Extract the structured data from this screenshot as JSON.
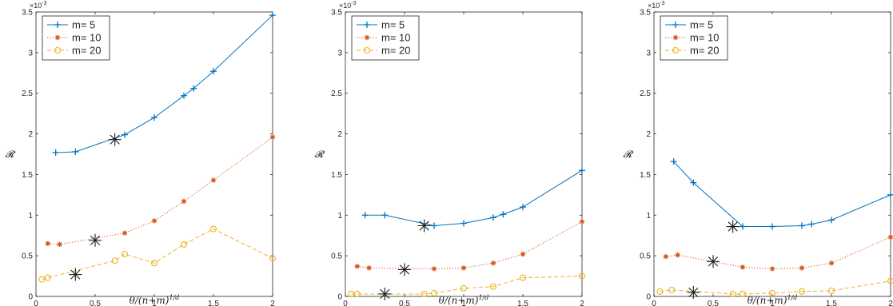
{
  "figure": {
    "ylabel": "𝓡",
    "xlabel": "θ/(n+m)",
    "xlabel_sup": "1/d",
    "y_exponent": "×10",
    "y_exponent_power": "-3"
  },
  "chart_data": [
    {
      "type": "line",
      "xlim": [
        0,
        2
      ],
      "ylim": [
        0,
        3.5
      ],
      "xticks": [
        "0",
        "0.5",
        "1",
        "1.5",
        "2"
      ],
      "yticks": [
        "0",
        "0.5",
        "1",
        "1.5",
        "2",
        "2.5",
        "3",
        "3.5"
      ],
      "y_scale_factor": "×10^-3",
      "legend_position": "top-left",
      "series": [
        {
          "name": "m= 5",
          "color": "#0072bd",
          "marker": "plus",
          "linestyle": "solid",
          "x": [
            0.1667,
            0.3333,
            0.75,
            1.0,
            1.25,
            1.3333,
            1.5,
            2.0
          ],
          "y": [
            1.77,
            1.78,
            1.99,
            2.2,
            2.47,
            2.56,
            2.77,
            3.46
          ]
        },
        {
          "name": "m= 10",
          "color": "#d95319",
          "marker": "asterisk",
          "linestyle": "dotted",
          "x": [
            0.1,
            0.2,
            0.75,
            1.0,
            1.25,
            1.5,
            2.0
          ],
          "y": [
            0.65,
            0.64,
            0.78,
            0.93,
            1.17,
            1.43,
            1.96
          ]
        },
        {
          "name": "m= 20",
          "color": "#edb120",
          "marker": "circle",
          "linestyle": "dashed",
          "x": [
            0.05,
            0.1,
            0.6667,
            0.75,
            1.0,
            1.25,
            1.5,
            2.0
          ],
          "y": [
            0.21,
            0.23,
            0.44,
            0.52,
            0.41,
            0.64,
            0.83,
            0.47
          ]
        }
      ],
      "highlights": {
        "x": [
          0.6667,
          0.5,
          0.3333
        ],
        "y": [
          1.93,
          0.69,
          0.27
        ]
      }
    },
    {
      "type": "line",
      "xlim": [
        0,
        2
      ],
      "ylim": [
        0,
        3.5
      ],
      "xticks": [
        "0",
        "0.5",
        "1",
        "1.5",
        "2"
      ],
      "yticks": [
        "0",
        "0.5",
        "1",
        "1.5",
        "2",
        "2.5",
        "3",
        "3.5"
      ],
      "y_scale_factor": "×10^-3",
      "legend_position": "top-left",
      "series": [
        {
          "name": "m= 5",
          "color": "#0072bd",
          "marker": "plus",
          "linestyle": "solid",
          "x": [
            0.1667,
            0.3333,
            0.75,
            1.0,
            1.25,
            1.3333,
            1.5,
            2.0
          ],
          "y": [
            1.0,
            1.0,
            0.87,
            0.9,
            0.97,
            1.01,
            1.1,
            1.55
          ]
        },
        {
          "name": "m= 10",
          "color": "#d95319",
          "marker": "asterisk",
          "linestyle": "dotted",
          "x": [
            0.1,
            0.2,
            0.75,
            1.0,
            1.25,
            1.5,
            2.0
          ],
          "y": [
            0.37,
            0.35,
            0.34,
            0.35,
            0.41,
            0.52,
            0.92
          ]
        },
        {
          "name": "m= 20",
          "color": "#edb120",
          "marker": "circle",
          "linestyle": "dashed",
          "x": [
            0.05,
            0.1,
            0.6667,
            0.75,
            1.0,
            1.25,
            1.5,
            2.0
          ],
          "y": [
            0.03,
            0.03,
            0.03,
            0.04,
            0.1,
            0.12,
            0.23,
            0.25
          ]
        }
      ],
      "highlights": {
        "x": [
          0.6667,
          0.5,
          0.3333
        ],
        "y": [
          0.87,
          0.33,
          0.03
        ]
      }
    },
    {
      "type": "line",
      "xlim": [
        0,
        2
      ],
      "ylim": [
        0,
        3.5
      ],
      "xticks": [
        "0",
        "0.5",
        "1",
        "1.5",
        "2"
      ],
      "yticks": [
        "0",
        "0.5",
        "1",
        "1.5",
        "2",
        "2.5",
        "3",
        "3.5"
      ],
      "y_scale_factor": "×10^-3",
      "legend_position": "top-left",
      "series": [
        {
          "name": "m= 5",
          "color": "#0072bd",
          "marker": "plus",
          "linestyle": "solid",
          "x": [
            0.1667,
            0.3333,
            0.75,
            1.0,
            1.25,
            1.3333,
            1.5,
            2.0
          ],
          "y": [
            1.66,
            1.4,
            0.86,
            0.86,
            0.87,
            0.89,
            0.94,
            1.25
          ]
        },
        {
          "name": "m= 10",
          "color": "#d95319",
          "marker": "asterisk",
          "linestyle": "dotted",
          "x": [
            0.1,
            0.2,
            0.75,
            1.0,
            1.25,
            1.5,
            2.0
          ],
          "y": [
            0.49,
            0.51,
            0.36,
            0.34,
            0.35,
            0.41,
            0.73
          ]
        },
        {
          "name": "m= 20",
          "color": "#edb120",
          "marker": "circle",
          "linestyle": "dashed",
          "x": [
            0.05,
            0.15,
            0.6667,
            0.75,
            1.0,
            1.25,
            1.5,
            2.0
          ],
          "y": [
            0.06,
            0.08,
            0.03,
            0.03,
            0.04,
            0.06,
            0.07,
            0.19
          ]
        }
      ],
      "highlights": {
        "x": [
          0.6667,
          0.5,
          0.3333
        ],
        "y": [
          0.86,
          0.43,
          0.05
        ]
      }
    }
  ]
}
